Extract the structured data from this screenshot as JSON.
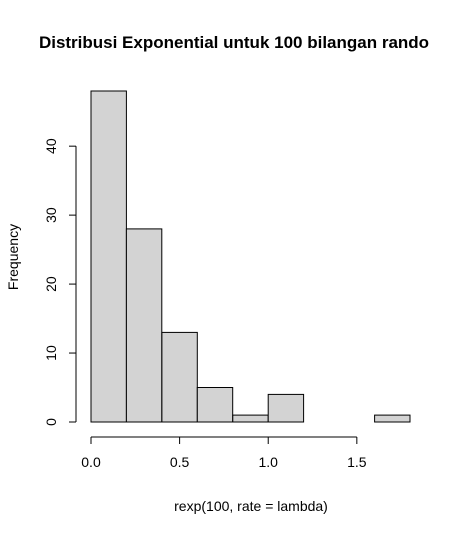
{
  "chart_data": {
    "type": "bar",
    "title": "Distribusi Exponential untuk 100 bilangan rando",
    "xlabel": "rexp(100, rate = lambda)",
    "ylabel": "Frequency",
    "bin_edges": [
      0.0,
      0.2,
      0.4,
      0.6,
      0.8,
      1.0,
      1.2,
      1.4,
      1.6,
      1.8
    ],
    "values": [
      48,
      28,
      13,
      5,
      1,
      4,
      0,
      0,
      1
    ],
    "x_ticks": [
      0.0,
      0.5,
      1.0,
      1.5
    ],
    "x_tick_labels": [
      "0.0",
      "0.5",
      "1.0",
      "1.5"
    ],
    "y_ticks": [
      0,
      10,
      20,
      30,
      40
    ],
    "y_tick_labels": [
      "0",
      "10",
      "20",
      "30",
      "40"
    ],
    "xlim": [
      0.0,
      1.8
    ],
    "ylim": [
      0,
      48
    ],
    "bar_color": "#d3d3d3",
    "grid": false
  }
}
